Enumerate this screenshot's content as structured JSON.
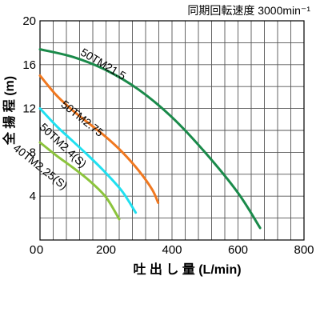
{
  "chart_data": {
    "type": "line",
    "subtitle": "同期回転速度 3000min⁻¹",
    "xlabel": "吐 出 し 量 (L/min)",
    "ylabel": "全 揚 程 (m)",
    "xlim": [
      0,
      800
    ],
    "ylim": [
      0,
      20
    ],
    "x_ticks": [
      0,
      200,
      400,
      600,
      800
    ],
    "y_ticks": [
      4,
      8,
      12,
      16,
      20
    ],
    "x_tick_labels": [
      "0",
      "200",
      "400",
      "600",
      "800"
    ],
    "y_tick_labels": [
      "4",
      "8",
      "12",
      "16",
      "20"
    ],
    "grid": true,
    "series": [
      {
        "name": "50TM21.5",
        "color": "#1a8a4a",
        "points": [
          [
            0,
            17.4
          ],
          [
            100,
            16.7
          ],
          [
            200,
            15.5
          ],
          [
            300,
            13.7
          ],
          [
            400,
            11.2
          ],
          [
            500,
            8.0
          ],
          [
            600,
            4.3
          ],
          [
            667,
            1.1
          ]
        ]
      },
      {
        "name": "50TM2.75",
        "color": "#f07820",
        "points": [
          [
            0,
            15.0
          ],
          [
            50,
            13.2
          ],
          [
            100,
            11.8
          ],
          [
            150,
            10.6
          ],
          [
            200,
            9.4
          ],
          [
            250,
            8.0
          ],
          [
            300,
            6.3
          ],
          [
            340,
            4.6
          ],
          [
            358,
            3.4
          ]
        ]
      },
      {
        "name": "50TM2.4(S)",
        "color": "#20e0f0",
        "points": [
          [
            0,
            12.0
          ],
          [
            50,
            10.4
          ],
          [
            100,
            9.0
          ],
          [
            150,
            7.6
          ],
          [
            200,
            6.1
          ],
          [
            250,
            4.4
          ],
          [
            290,
            2.5
          ]
        ]
      },
      {
        "name": "40TM2.25(S)",
        "color": "#8cc43c",
        "points": [
          [
            0,
            8.9
          ],
          [
            50,
            7.7
          ],
          [
            100,
            6.6
          ],
          [
            150,
            5.4
          ],
          [
            200,
            3.9
          ],
          [
            240,
            1.9
          ]
        ]
      }
    ]
  }
}
